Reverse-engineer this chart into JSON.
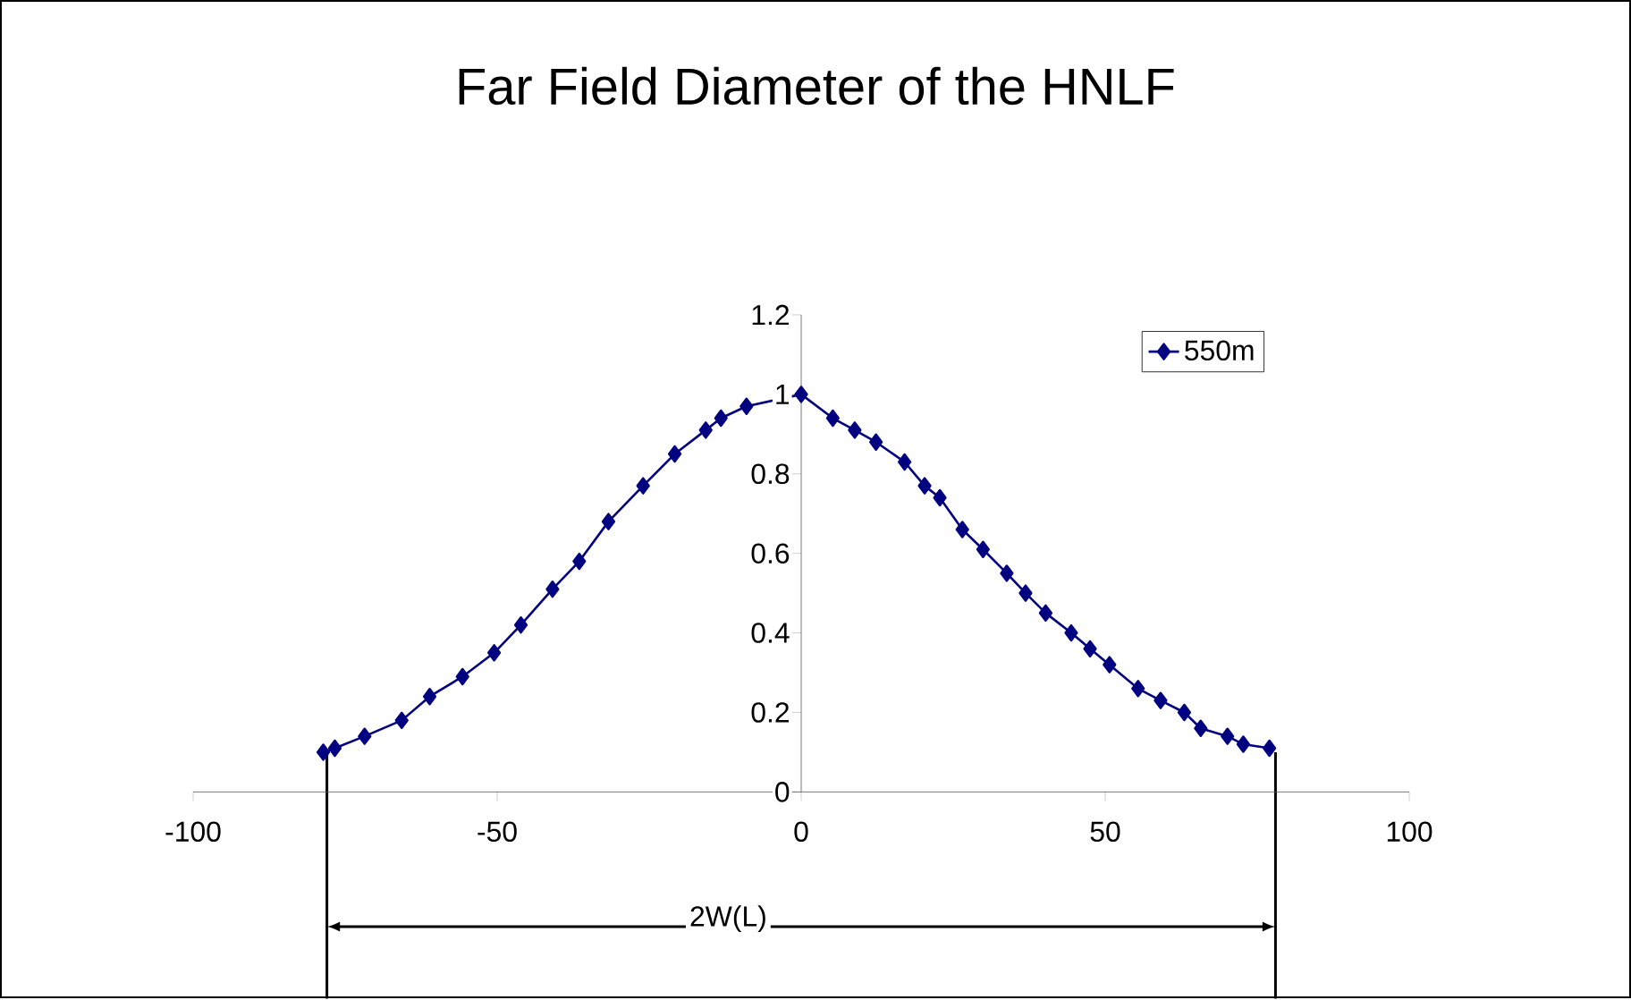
{
  "chart_data": {
    "type": "line",
    "title": "Far Field Diameter of the HNLF",
    "x": [
      -78.6,
      -76.7,
      -71.8,
      -65.7,
      -61.1,
      -55.7,
      -50.5,
      -46.1,
      -40.9,
      -36.5,
      -31.7,
      -26.0,
      -20.8,
      -15.7,
      -13.2,
      -9.0,
      0,
      5.2,
      8.8,
      12.3,
      17.0,
      20.3,
      22.8,
      26.5,
      29.9,
      33.8,
      36.9,
      40.2,
      44.4,
      47.5,
      50.7,
      55.4,
      59.1,
      63.0,
      65.7,
      70.1,
      72.7,
      77.0
    ],
    "series": [
      {
        "name": "550m",
        "color": "#000080",
        "values": [
          0.1,
          0.11,
          0.14,
          0.18,
          0.24,
          0.29,
          0.35,
          0.42,
          0.51,
          0.58,
          0.68,
          0.77,
          0.85,
          0.91,
          0.94,
          0.97,
          1.0,
          0.94,
          0.91,
          0.88,
          0.83,
          0.77,
          0.74,
          0.66,
          0.61,
          0.55,
          0.5,
          0.45,
          0.4,
          0.36,
          0.32,
          0.26,
          0.23,
          0.2,
          0.16,
          0.14,
          0.12,
          0.11
        ]
      }
    ],
    "xlim": [
      -100,
      100
    ],
    "xticks": [
      -100,
      -50,
      0,
      50,
      100
    ],
    "ylim": [
      0,
      1.2
    ],
    "yticks": [
      0,
      0.2,
      0.4,
      0.6,
      0.8,
      1,
      1.2
    ],
    "ref_lines": [
      {
        "axis": "x",
        "value": -78,
        "label": null
      },
      {
        "axis": "x",
        "value": 78,
        "label": null
      }
    ],
    "annotations": [
      "2W(L)"
    ],
    "marker": "diamond",
    "line_style": "solid",
    "legend": "top right",
    "grid": false
  }
}
